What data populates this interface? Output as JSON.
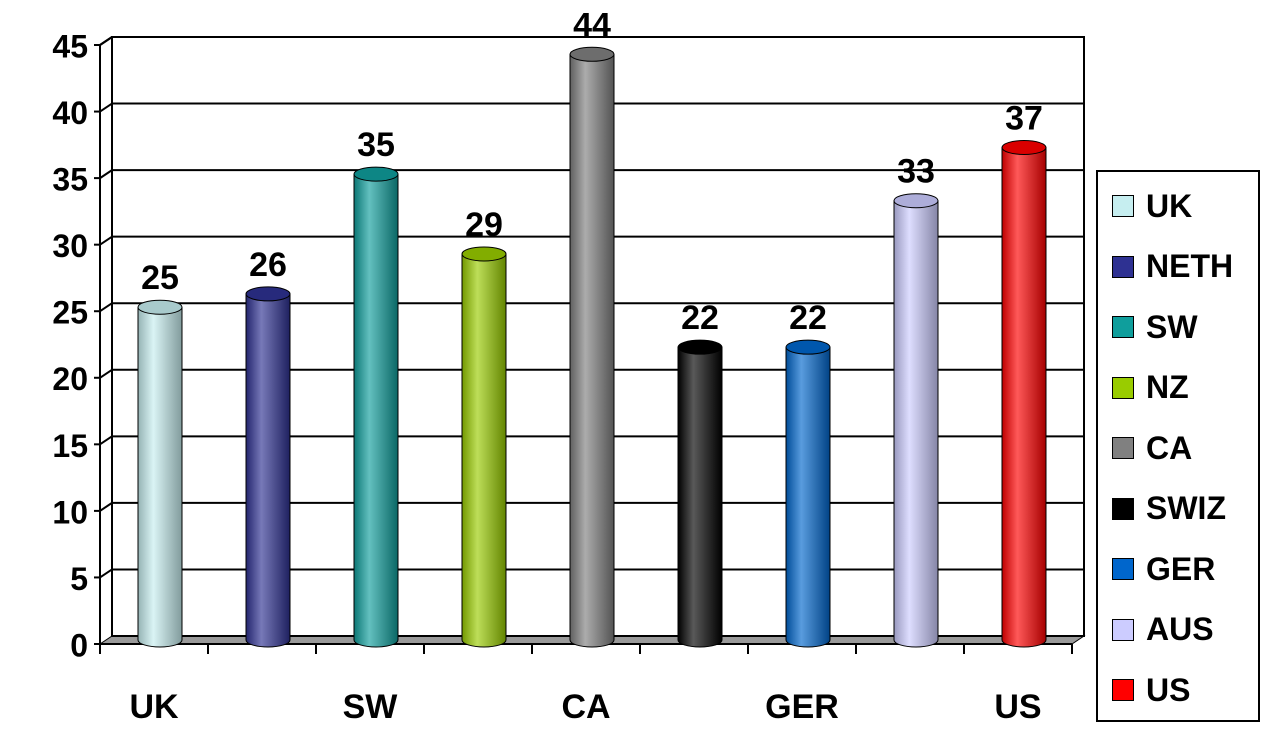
{
  "chart_data": {
    "type": "bar",
    "categories": [
      "UK",
      "NETH",
      "SW",
      "NZ",
      "CA",
      "SWIZ",
      "GER",
      "AUS",
      "US"
    ],
    "values": [
      25,
      26,
      35,
      29,
      44,
      22,
      22,
      33,
      37
    ],
    "x_tick_labels": [
      "UK",
      "SW",
      "CA",
      "GER",
      "US"
    ],
    "y_ticks": [
      0,
      5,
      10,
      15,
      20,
      25,
      30,
      35,
      40,
      45
    ],
    "ylim": [
      0,
      45
    ],
    "grid": true,
    "legend_position": "right",
    "colors": [
      "#c6eef0",
      "#2e3192",
      "#0f9e9c",
      "#99cc00",
      "#808080",
      "#000000",
      "#0066cc",
      "#ccccff",
      "#ff0000"
    ],
    "title": "",
    "xlabel": "",
    "ylabel": ""
  }
}
